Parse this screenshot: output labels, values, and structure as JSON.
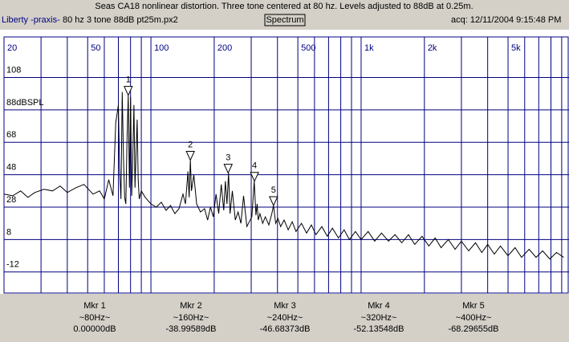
{
  "window": {
    "title": "Seas CA18 nonlinear distortion. Three tone centered at 80 hz. Levels adjusted to 88dB at 0.25m.",
    "app": "Liberty -praxis-",
    "file": "80 hz 3 tone 88dB pt25m.px2",
    "view": "Spectrum",
    "acquired": "acq: 12/11/2004 9:15:48 PM"
  },
  "chart_data": {
    "type": "line",
    "log_x": true,
    "grid": true,
    "color": "#000000",
    "xlim": [
      20,
      9750
    ],
    "ylim": [
      -25,
      133
    ],
    "xticks": [
      20,
      50,
      100,
      200,
      500,
      {
        "value": 1000,
        "label": "1k"
      },
      {
        "value": 2000,
        "label": "2k"
      },
      {
        "value": 5000,
        "label": "5k"
      }
    ],
    "xgrid_minor": [
      30,
      40,
      60,
      70,
      80,
      90,
      300,
      400,
      600,
      700,
      800,
      900,
      3000,
      4000,
      6000,
      7000,
      8000,
      9000
    ],
    "yticks": [
      108,
      {
        "value": 88,
        "label": "88dBSPL"
      },
      68,
      48,
      28,
      8,
      -12
    ],
    "x": [
      20,
      22,
      24,
      26,
      28,
      31,
      34,
      37,
      40,
      44,
      48,
      53,
      57,
      60,
      63,
      66,
      68,
      70,
      71,
      72,
      73,
      74,
      75,
      76,
      77,
      78,
      79,
      80,
      81,
      82,
      83,
      84,
      86,
      87,
      88,
      90,
      94,
      100,
      106,
      112,
      118,
      124,
      130,
      136,
      142,
      146,
      150,
      152,
      154,
      156,
      160,
      165,
      172,
      180,
      186,
      192,
      198,
      204,
      210,
      216,
      222,
      226,
      230,
      234,
      238,
      244,
      252,
      260,
      268,
      276,
      286,
      294,
      302,
      310,
      316,
      320,
      324,
      330,
      340,
      350,
      364,
      376,
      383,
      392,
      402,
      414,
      430,
      450,
      470,
      490,
      520,
      550,
      580,
      610,
      650,
      690,
      730,
      780,
      830,
      880,
      940,
      1000,
      1080,
      1160,
      1250,
      1350,
      1450,
      1560,
      1680,
      1800,
      1950,
      2100,
      2250,
      2400,
      2600,
      2800,
      3000,
      3250,
      3500,
      3750,
      4000,
      4300,
      4600,
      5000,
      5400,
      5800,
      6300,
      6800,
      7300,
      7900,
      8500,
      9200
    ],
    "values": [
      36,
      35,
      38,
      34,
      37,
      39,
      38,
      41,
      37,
      40,
      42,
      36,
      38,
      33,
      45,
      35,
      80,
      91,
      50,
      33,
      99,
      60,
      34,
      30,
      70,
      97,
      40,
      96,
      35,
      60,
      91,
      40,
      82,
      45,
      33,
      38,
      34,
      30,
      28,
      31,
      26,
      29,
      24,
      27,
      36,
      30,
      50,
      34,
      57,
      38,
      48,
      30,
      25,
      27,
      20,
      28,
      22,
      36,
      24,
      42,
      26,
      44,
      30,
      49,
      24,
      38,
      20,
      25,
      18,
      35,
      16,
      19,
      22,
      44,
      23,
      30,
      20,
      24,
      18,
      22,
      17,
      24,
      29,
      18,
      21,
      16,
      20,
      14,
      19,
      13,
      18,
      12,
      17,
      11,
      16,
      10,
      15,
      9,
      14,
      8,
      13,
      8,
      13,
      7,
      12,
      7,
      11,
      6,
      11,
      5,
      10,
      4,
      9,
      3,
      8,
      2,
      7,
      1,
      6,
      0,
      5,
      -1,
      4,
      -2,
      3,
      -3,
      2,
      -3,
      1,
      -4,
      0,
      -3
    ],
    "markers": [
      {
        "name": "1",
        "x": 78,
        "y": 97
      },
      {
        "name": "2",
        "x": 154,
        "y": 57
      },
      {
        "name": "3",
        "x": 233,
        "y": 49
      },
      {
        "name": "4",
        "x": 311,
        "y": 44
      },
      {
        "name": "5",
        "x": 383,
        "y": 29
      }
    ]
  },
  "marker_table": [
    {
      "name": "Mkr 1",
      "freq": "~80Hz~",
      "level": "0.00000dB"
    },
    {
      "name": "Mkr 2",
      "freq": "~160Hz~",
      "level": "-38.99589dB"
    },
    {
      "name": "Mkr 3",
      "freq": "~240Hz~",
      "level": "-46.68373dB"
    },
    {
      "name": "Mkr 4",
      "freq": "~320Hz~",
      "level": "-52.13548dB"
    },
    {
      "name": "Mkr 5",
      "freq": "~400Hz~",
      "level": "-68.29655dB"
    }
  ]
}
